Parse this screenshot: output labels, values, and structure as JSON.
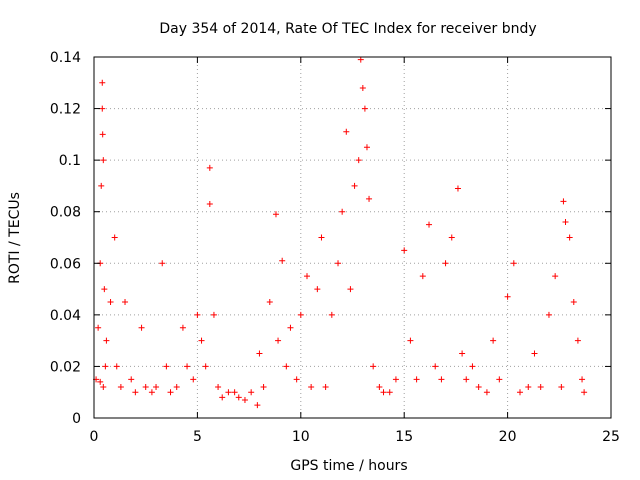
{
  "chart_data": {
    "type": "scatter",
    "title": "Day 354 of 2014, Rate Of TEC Index for receiver bndy",
    "xlabel": "GPS time / hours",
    "ylabel": "ROTI / TECUs",
    "xlim": [
      0,
      25
    ],
    "ylim": [
      0,
      0.14
    ],
    "x_ticks": [
      0,
      5,
      10,
      15,
      20,
      25
    ],
    "x_tick_labels": [
      "0",
      "5",
      "10",
      "15",
      "20",
      "25"
    ],
    "y_ticks": [
      0,
      0.02,
      0.04,
      0.06,
      0.08,
      0.1,
      0.12,
      0.14
    ],
    "y_tick_labels": [
      "0",
      "0.02",
      "0.04",
      "0.06",
      "0.08",
      "0.1",
      "0.12",
      "0.14"
    ],
    "grid": true,
    "marker": "+",
    "series": [
      {
        "name": "ROTI",
        "color": "#ff0000",
        "x": [
          0.1,
          0.2,
          0.3,
          0.35,
          0.4,
          0.4,
          0.42,
          0.45,
          0.5,
          0.55,
          0.3,
          0.45,
          0.6,
          0.8,
          1.0,
          1.1,
          1.3,
          1.5,
          1.8,
          2.0,
          2.3,
          2.5,
          2.8,
          3.0,
          3.3,
          3.5,
          3.7,
          4.0,
          4.3,
          4.5,
          4.8,
          5.0,
          5.2,
          5.4,
          5.6,
          5.6,
          5.8,
          6.0,
          6.2,
          6.5,
          6.8,
          7.0,
          7.3,
          7.6,
          7.9,
          8.0,
          8.2,
          8.5,
          8.8,
          8.9,
          9.1,
          9.3,
          9.5,
          9.8,
          10.0,
          10.3,
          10.5,
          10.8,
          11.0,
          11.2,
          11.5,
          11.8,
          12.0,
          12.2,
          12.4,
          12.6,
          12.8,
          12.9,
          13.0,
          13.1,
          13.2,
          13.3,
          13.5,
          13.8,
          14.0,
          14.3,
          14.6,
          15.0,
          15.3,
          15.6,
          15.9,
          16.2,
          16.5,
          16.8,
          17.0,
          17.3,
          17.6,
          17.8,
          18.0,
          18.3,
          18.6,
          19.0,
          19.3,
          19.6,
          20.0,
          20.3,
          20.6,
          21.0,
          21.3,
          21.6,
          22.0,
          22.3,
          22.6,
          22.7,
          22.8,
          23.0,
          23.2,
          23.4,
          23.6,
          23.7
        ],
        "y": [
          0.015,
          0.035,
          0.06,
          0.09,
          0.13,
          0.12,
          0.11,
          0.1,
          0.05,
          0.02,
          0.014,
          0.012,
          0.03,
          0.045,
          0.07,
          0.02,
          0.012,
          0.045,
          0.015,
          0.01,
          0.035,
          0.012,
          0.01,
          0.012,
          0.06,
          0.02,
          0.01,
          0.012,
          0.035,
          0.02,
          0.015,
          0.04,
          0.03,
          0.02,
          0.083,
          0.097,
          0.04,
          0.012,
          0.008,
          0.01,
          0.01,
          0.008,
          0.007,
          0.01,
          0.005,
          0.025,
          0.012,
          0.045,
          0.079,
          0.03,
          0.061,
          0.02,
          0.035,
          0.015,
          0.04,
          0.055,
          0.012,
          0.05,
          0.07,
          0.012,
          0.04,
          0.06,
          0.08,
          0.111,
          0.05,
          0.09,
          0.1,
          0.139,
          0.128,
          0.12,
          0.105,
          0.085,
          0.02,
          0.012,
          0.01,
          0.01,
          0.015,
          0.065,
          0.03,
          0.015,
          0.055,
          0.075,
          0.02,
          0.015,
          0.06,
          0.07,
          0.089,
          0.025,
          0.015,
          0.02,
          0.012,
          0.01,
          0.03,
          0.015,
          0.047,
          0.06,
          0.01,
          0.012,
          0.025,
          0.012,
          0.04,
          0.055,
          0.012,
          0.084,
          0.076,
          0.07,
          0.045,
          0.03,
          0.015,
          0.01
        ]
      }
    ]
  }
}
